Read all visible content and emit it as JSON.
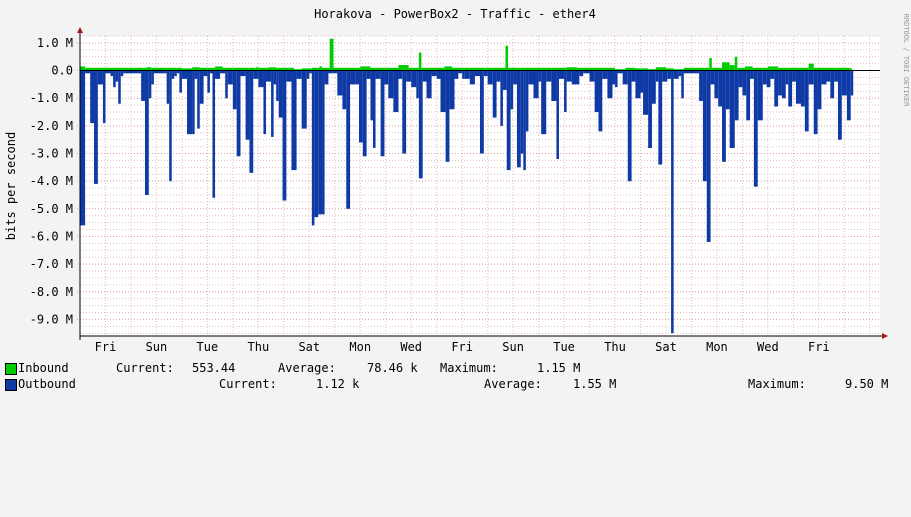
{
  "watermark": "RRDTOOL / TOBI OETIKER",
  "colors": {
    "background": "#f3f3f3",
    "plot_background": "#ffffff",
    "grid_minor": "#e6bebe",
    "axis": "#000000",
    "arrow": "#a31b1b",
    "inbound": "#00cc00",
    "outbound": "#0f3aa6",
    "outbound_edge": "#002a8f"
  },
  "legend": {
    "inbound": {
      "label": "Inbound",
      "current_label": "Current:",
      "current": "553.44",
      "average_label": "Average:",
      "average": "78.46 k",
      "maximum_label": "Maximum:",
      "maximum": "1.15 M"
    },
    "outbound": {
      "label": "Outbound",
      "current_label": "Current:",
      "current": "1.12 k",
      "average_label": "Average:",
      "average": "1.55 M",
      "maximum_label": "Maximum:",
      "maximum": "9.50 M"
    }
  },
  "chart_data": {
    "type": "area",
    "title": "Horakova - PowerBox2 - Traffic - ether4",
    "xlabel": "",
    "ylabel": "bits per second",
    "ylim": [
      -9.6,
      1.25
    ],
    "y_unit": "M",
    "y_ticks": [
      "1.0 M",
      "0.0",
      "-1.0 M",
      "-2.0 M",
      "-3.0 M",
      "-4.0 M",
      "-5.0 M",
      "-6.0 M",
      "-7.0 M",
      "-8.0 M",
      "-9.0 M"
    ],
    "y_tick_values": [
      1,
      0,
      -1,
      -2,
      -3,
      -4,
      -5,
      -6,
      -7,
      -8,
      -9
    ],
    "x_ticks": [
      "Fri",
      "Sun",
      "Tue",
      "Thu",
      "Sat",
      "Mon",
      "Wed",
      "Fri",
      "Sun",
      "Tue",
      "Thu",
      "Sat",
      "Mon",
      "Wed",
      "Fri"
    ],
    "x_tick_days": [
      1,
      3,
      5,
      7,
      9,
      11,
      13,
      15,
      17,
      19,
      21,
      23,
      25,
      27,
      29
    ],
    "x_range_days": [
      0,
      31.4
    ],
    "grid": true,
    "legend_position": "bottom",
    "series": [
      {
        "name": "Inbound",
        "color": "#00cc00",
        "points": [
          [
            0.0,
            0.15
          ],
          [
            0.2,
            0.1
          ],
          [
            0.9,
            0.1
          ],
          [
            1.0,
            0.1
          ],
          [
            1.5,
            0.1
          ],
          [
            1.9,
            0.1
          ],
          [
            2.5,
            0.1
          ],
          [
            2.6,
            0.12
          ],
          [
            2.8,
            0.1
          ],
          [
            3.4,
            0.1
          ],
          [
            3.8,
            0.1
          ],
          [
            4.0,
            0.08
          ],
          [
            4.4,
            0.12
          ],
          [
            4.7,
            0.1
          ],
          [
            5.0,
            0.1
          ],
          [
            5.3,
            0.15
          ],
          [
            5.6,
            0.1
          ],
          [
            6.0,
            0.1
          ],
          [
            6.6,
            0.1
          ],
          [
            6.9,
            0.12
          ],
          [
            7.0,
            0.1
          ],
          [
            7.4,
            0.12
          ],
          [
            7.7,
            0.1
          ],
          [
            8.4,
            0.05
          ],
          [
            8.7,
            0.08
          ],
          [
            9.1,
            0.1
          ],
          [
            9.4,
            0.15
          ],
          [
            9.5,
            0.1
          ],
          [
            9.8,
            1.15
          ],
          [
            9.95,
            0.1
          ],
          [
            10.5,
            0.1
          ],
          [
            11.0,
            0.15
          ],
          [
            11.4,
            0.1
          ],
          [
            12.0,
            0.1
          ],
          [
            12.5,
            0.2
          ],
          [
            12.9,
            0.1
          ],
          [
            13.3,
            0.65
          ],
          [
            13.4,
            0.1
          ],
          [
            13.8,
            0.1
          ],
          [
            14.3,
            0.15
          ],
          [
            14.6,
            0.1
          ],
          [
            15.3,
            0.1
          ],
          [
            15.9,
            0.1
          ],
          [
            16.6,
            0.1
          ],
          [
            16.7,
            0.9
          ],
          [
            16.8,
            0.1
          ],
          [
            17.3,
            0.1
          ],
          [
            17.8,
            0.1
          ],
          [
            18.5,
            0.1
          ],
          [
            19.1,
            0.12
          ],
          [
            19.5,
            0.1
          ],
          [
            20.0,
            0.1
          ],
          [
            20.6,
            0.1
          ],
          [
            21.0,
            0.05
          ],
          [
            21.4,
            0.1
          ],
          [
            21.8,
            0.08
          ],
          [
            22.3,
            0.05
          ],
          [
            22.6,
            0.12
          ],
          [
            23.0,
            0.08
          ],
          [
            23.3,
            0.05
          ],
          [
            23.7,
            0.1
          ],
          [
            24.2,
            0.1
          ],
          [
            24.5,
            0.1
          ],
          [
            24.7,
            0.45
          ],
          [
            24.8,
            0.1
          ],
          [
            25.2,
            0.3
          ],
          [
            25.5,
            0.2
          ],
          [
            25.7,
            0.5
          ],
          [
            25.8,
            0.1
          ],
          [
            26.1,
            0.15
          ],
          [
            26.4,
            0.1
          ],
          [
            26.8,
            0.1
          ],
          [
            27.0,
            0.15
          ],
          [
            27.4,
            0.1
          ],
          [
            27.8,
            0.1
          ],
          [
            28.3,
            0.1
          ],
          [
            28.6,
            0.25
          ],
          [
            28.8,
            0.1
          ],
          [
            29.3,
            0.1
          ],
          [
            29.7,
            0.1
          ],
          [
            30.2,
            0.08
          ]
        ]
      },
      {
        "name": "Outbound",
        "color": "#0f3aa6",
        "points": [
          [
            0.0,
            -5.6
          ],
          [
            0.2,
            -0.1
          ],
          [
            0.4,
            -1.9
          ],
          [
            0.55,
            -4.1
          ],
          [
            0.7,
            -0.5
          ],
          [
            0.9,
            -1.9
          ],
          [
            1.0,
            -0.1
          ],
          [
            1.2,
            -0.2
          ],
          [
            1.3,
            -0.6
          ],
          [
            1.4,
            -0.4
          ],
          [
            1.5,
            -1.2
          ],
          [
            1.6,
            -0.2
          ],
          [
            1.7,
            -0.1
          ],
          [
            2.3,
            -0.1
          ],
          [
            2.4,
            -1.1
          ],
          [
            2.55,
            -4.5
          ],
          [
            2.7,
            -1.0
          ],
          [
            2.8,
            -0.5
          ],
          [
            2.9,
            -0.1
          ],
          [
            3.3,
            -0.1
          ],
          [
            3.4,
            -1.2
          ],
          [
            3.5,
            -4.0
          ],
          [
            3.6,
            -0.3
          ],
          [
            3.7,
            -0.2
          ],
          [
            3.8,
            -0.1
          ],
          [
            3.9,
            -0.8
          ],
          [
            4.0,
            -0.3
          ],
          [
            4.2,
            -2.3
          ],
          [
            4.4,
            -2.3
          ],
          [
            4.5,
            -0.3
          ],
          [
            4.6,
            -2.1
          ],
          [
            4.7,
            -1.2
          ],
          [
            4.85,
            -0.2
          ],
          [
            5.0,
            -0.8
          ],
          [
            5.1,
            -0.1
          ],
          [
            5.2,
            -4.6
          ],
          [
            5.3,
            -0.3
          ],
          [
            5.5,
            -0.1
          ],
          [
            5.7,
            -1.0
          ],
          [
            5.8,
            -0.5
          ],
          [
            6.0,
            -1.4
          ],
          [
            6.15,
            -3.1
          ],
          [
            6.3,
            -0.2
          ],
          [
            6.5,
            -2.5
          ],
          [
            6.65,
            -3.7
          ],
          [
            6.8,
            -0.3
          ],
          [
            7.0,
            -0.6
          ],
          [
            7.2,
            -2.3
          ],
          [
            7.3,
            -0.4
          ],
          [
            7.5,
            -2.4
          ],
          [
            7.6,
            -0.5
          ],
          [
            7.7,
            -1.1
          ],
          [
            7.8,
            -1.7
          ],
          [
            7.95,
            -4.7
          ],
          [
            8.1,
            -0.4
          ],
          [
            8.3,
            -3.6
          ],
          [
            8.5,
            -0.3
          ],
          [
            8.7,
            -2.1
          ],
          [
            8.9,
            -0.3
          ],
          [
            9.0,
            -0.1
          ],
          [
            9.1,
            -5.6
          ],
          [
            9.2,
            -5.3
          ],
          [
            9.35,
            -5.2
          ],
          [
            9.5,
            -5.2
          ],
          [
            9.6,
            -0.5
          ],
          [
            9.75,
            -0.1
          ],
          [
            9.9,
            -0.1
          ],
          [
            10.1,
            -0.9
          ],
          [
            10.3,
            -1.4
          ],
          [
            10.45,
            -5.0
          ],
          [
            10.6,
            -0.5
          ],
          [
            10.8,
            -0.5
          ],
          [
            10.95,
            -2.6
          ],
          [
            11.1,
            -3.1
          ],
          [
            11.25,
            -0.3
          ],
          [
            11.4,
            -1.8
          ],
          [
            11.5,
            -2.8
          ],
          [
            11.6,
            -0.3
          ],
          [
            11.8,
            -3.1
          ],
          [
            11.95,
            -0.5
          ],
          [
            12.1,
            -1.0
          ],
          [
            12.3,
            -1.5
          ],
          [
            12.5,
            -0.3
          ],
          [
            12.65,
            -3.0
          ],
          [
            12.8,
            -0.4
          ],
          [
            13.0,
            -0.6
          ],
          [
            13.2,
            -1.0
          ],
          [
            13.3,
            -3.9
          ],
          [
            13.45,
            -0.4
          ],
          [
            13.6,
            -1.0
          ],
          [
            13.8,
            -0.2
          ],
          [
            14.0,
            -0.3
          ],
          [
            14.15,
            -1.5
          ],
          [
            14.35,
            -3.3
          ],
          [
            14.5,
            -1.4
          ],
          [
            14.7,
            -0.3
          ],
          [
            14.85,
            -0.1
          ],
          [
            15.0,
            -0.3
          ],
          [
            15.1,
            -0.3
          ],
          [
            15.3,
            -0.5
          ],
          [
            15.5,
            -0.2
          ],
          [
            15.7,
            -3.0
          ],
          [
            15.85,
            -0.2
          ],
          [
            16.0,
            -0.5
          ],
          [
            16.2,
            -1.7
          ],
          [
            16.35,
            -0.4
          ],
          [
            16.5,
            -2.0
          ],
          [
            16.6,
            -0.7
          ],
          [
            16.75,
            -3.6
          ],
          [
            16.9,
            -1.4
          ],
          [
            17.0,
            -0.5
          ],
          [
            17.15,
            -3.5
          ],
          [
            17.3,
            -3.0
          ],
          [
            17.4,
            -3.6
          ],
          [
            17.5,
            -2.2
          ],
          [
            17.6,
            -0.5
          ],
          [
            17.8,
            -1.0
          ],
          [
            18.0,
            -0.4
          ],
          [
            18.1,
            -2.3
          ],
          [
            18.3,
            -0.4
          ],
          [
            18.5,
            -1.1
          ],
          [
            18.7,
            -3.2
          ],
          [
            18.8,
            -0.3
          ],
          [
            19.0,
            -1.5
          ],
          [
            19.1,
            -0.4
          ],
          [
            19.3,
            -0.5
          ],
          [
            19.6,
            -0.2
          ],
          [
            19.75,
            -0.1
          ],
          [
            20.0,
            -0.4
          ],
          [
            20.2,
            -1.5
          ],
          [
            20.35,
            -2.2
          ],
          [
            20.5,
            -0.3
          ],
          [
            20.7,
            -1.0
          ],
          [
            20.9,
            -0.5
          ],
          [
            21.0,
            -0.6
          ],
          [
            21.1,
            -0.1
          ],
          [
            21.3,
            -0.5
          ],
          [
            21.5,
            -4.0
          ],
          [
            21.65,
            -0.4
          ],
          [
            21.8,
            -1.0
          ],
          [
            22.0,
            -0.8
          ],
          [
            22.1,
            -1.6
          ],
          [
            22.3,
            -2.8
          ],
          [
            22.45,
            -1.2
          ],
          [
            22.6,
            -0.4
          ],
          [
            22.7,
            -3.4
          ],
          [
            22.85,
            -0.4
          ],
          [
            23.05,
            -0.3
          ],
          [
            23.2,
            -9.5
          ],
          [
            23.3,
            -0.3
          ],
          [
            23.5,
            -0.2
          ],
          [
            23.6,
            -1.0
          ],
          [
            23.7,
            -0.1
          ],
          [
            24.2,
            -0.1
          ],
          [
            24.3,
            -1.1
          ],
          [
            24.45,
            -4.0
          ],
          [
            24.6,
            -6.2
          ],
          [
            24.75,
            -0.5
          ],
          [
            24.9,
            -1.0
          ],
          [
            25.05,
            -1.3
          ],
          [
            25.2,
            -3.3
          ],
          [
            25.35,
            -1.4
          ],
          [
            25.5,
            -2.8
          ],
          [
            25.7,
            -1.8
          ],
          [
            25.85,
            -0.6
          ],
          [
            26.0,
            -0.9
          ],
          [
            26.15,
            -1.8
          ],
          [
            26.3,
            -0.3
          ],
          [
            26.45,
            -4.2
          ],
          [
            26.6,
            -1.8
          ],
          [
            26.8,
            -0.5
          ],
          [
            26.95,
            -0.6
          ],
          [
            27.1,
            -0.3
          ],
          [
            27.25,
            -1.3
          ],
          [
            27.4,
            -0.9
          ],
          [
            27.55,
            -1.0
          ],
          [
            27.7,
            -0.5
          ],
          [
            27.8,
            -1.3
          ],
          [
            27.95,
            -0.4
          ],
          [
            28.1,
            -1.2
          ],
          [
            28.3,
            -1.3
          ],
          [
            28.45,
            -2.2
          ],
          [
            28.6,
            -0.5
          ],
          [
            28.8,
            -2.3
          ],
          [
            28.95,
            -1.4
          ],
          [
            29.1,
            -0.5
          ],
          [
            29.3,
            -0.4
          ],
          [
            29.45,
            -1.0
          ],
          [
            29.6,
            -0.4
          ],
          [
            29.75,
            -2.5
          ],
          [
            29.9,
            -0.9
          ],
          [
            30.1,
            -1.8
          ],
          [
            30.25,
            -0.9
          ]
        ]
      }
    ]
  }
}
